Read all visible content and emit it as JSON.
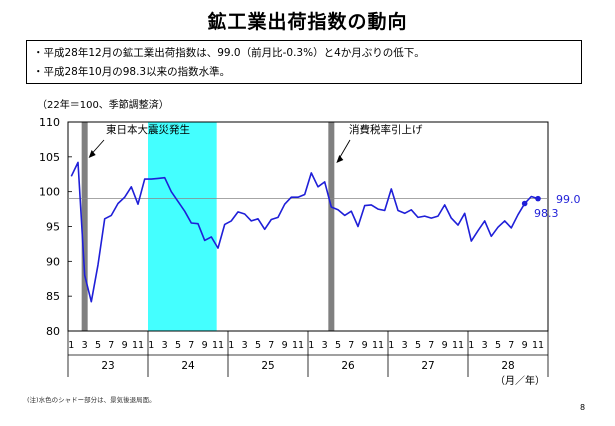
{
  "title": "鉱工業出荷指数の動向",
  "summary": [
    "・平成28年12月の鉱工業出荷指数は、99.0（前月比-0.3%）と4か月ぶりの低下。",
    "・平成28年10月の98.3以来の指数水準。"
  ],
  "footnote": "(注)水色のシャドー部分は、景気後退局面。",
  "page_number": "8",
  "chart_data": {
    "type": "line",
    "unit_label": "（22年＝100、季節調整済）",
    "x_unit_label": "（月／年）",
    "ylim": [
      80,
      110
    ],
    "yticks": [
      80,
      85,
      90,
      95,
      100,
      105,
      110
    ],
    "month_ticks": [
      "1",
      "3",
      "5",
      "7",
      "9",
      "11",
      "1",
      "3",
      "5",
      "7",
      "9",
      "11",
      "1",
      "3",
      "5",
      "7",
      "9",
      "11",
      "1",
      "3",
      "5",
      "7",
      "9",
      "11",
      "1",
      "3",
      "5",
      "7",
      "9",
      "11",
      "1",
      "3",
      "5",
      "7",
      "9",
      "11"
    ],
    "years": [
      "23",
      "24",
      "25",
      "26",
      "27",
      "28"
    ],
    "reference_line": 99.0,
    "series": [
      {
        "name": "鉱工業出荷指数",
        "color": "#1f1fd8",
        "values": [
          102.2,
          104.2,
          88.0,
          84.2,
          89.5,
          96.1,
          96.6,
          98.3,
          99.2,
          100.7,
          98.2,
          101.8,
          101.8,
          101.9,
          102.0,
          100.0,
          98.6,
          97.2,
          95.5,
          95.4,
          93.0,
          93.5,
          91.9,
          95.3,
          95.8,
          97.1,
          96.8,
          95.8,
          96.1,
          94.6,
          96.0,
          96.3,
          98.2,
          99.2,
          99.2,
          99.6,
          102.7,
          100.7,
          101.4,
          97.8,
          97.4,
          96.6,
          97.2,
          95.0,
          98.0,
          98.1,
          97.5,
          97.3,
          100.4,
          97.3,
          96.9,
          97.4,
          96.3,
          96.5,
          96.2,
          96.5,
          98.1,
          96.2,
          95.2,
          96.9,
          92.9,
          94.4,
          95.8,
          93.6,
          94.9,
          95.8,
          94.8,
          96.7,
          98.3,
          99.3,
          99.0
        ]
      }
    ],
    "recession_shade": {
      "start": 12,
      "end": 22,
      "color": "#44ffff"
    },
    "event_bars": [
      {
        "index": 2,
        "label": "東日本大震災発生"
      },
      {
        "index": 39,
        "label": "消費税率引上げ"
      }
    ],
    "callouts": [
      {
        "index": 68,
        "label": "98.3"
      },
      {
        "index": 70,
        "label": "99.0"
      }
    ],
    "grid": false
  }
}
